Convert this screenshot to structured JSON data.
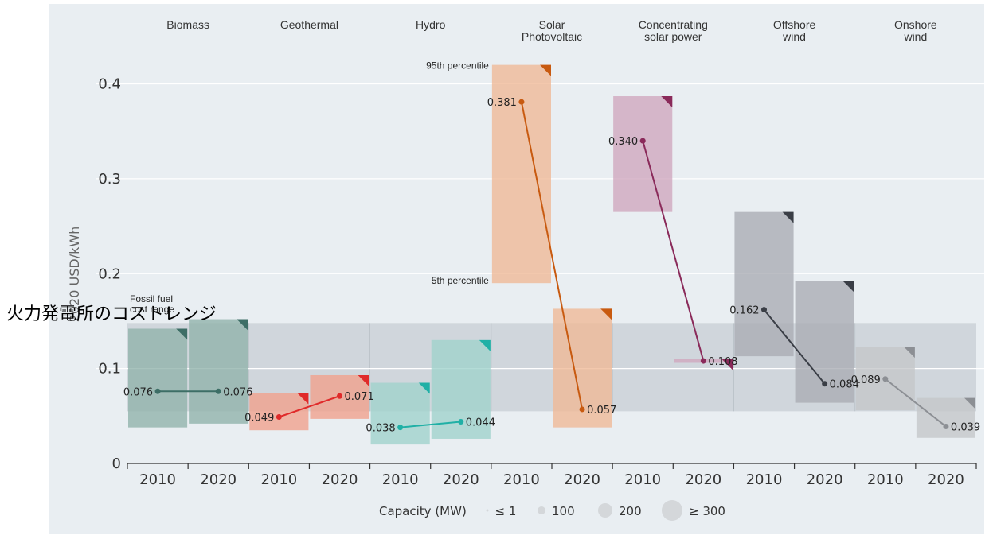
{
  "overlay_caption": "火力発電所のコストレンジ",
  "chart_data": {
    "type": "range-bar",
    "ylabel": "2020 USD/kWh",
    "ylim": [
      0,
      0.43
    ],
    "yticks": [
      0,
      0.1,
      0.2,
      0.3,
      0.4
    ],
    "ytick_labels": [
      "0",
      "0.1",
      "0.2",
      "0.3",
      "0.4"
    ],
    "xtick_labels": [
      "2010",
      "2020"
    ],
    "fossil_fuel_range": {
      "label": "Fossil fuel\ncost range",
      "low": 0.055,
      "high": 0.148
    },
    "percentile_labels": {
      "high": "95th percentile",
      "low": "5th percentile"
    },
    "technologies": [
      {
        "name": "Biomass",
        "color": "#3d6e66",
        "box_color": "#8fb2aa",
        "y2010": 0.076,
        "y2020": 0.076,
        "label2010": "0.076",
        "label2020": "0.076",
        "range2010": [
          0.038,
          0.142
        ],
        "range2020": [
          0.042,
          0.152
        ]
      },
      {
        "name": "Geothermal",
        "color": "#e02a2a",
        "box_color": "#f1a08c",
        "y2010": 0.049,
        "y2020": 0.071,
        "label2010": "0.049",
        "label2020": "0.071",
        "range2010": [
          0.035,
          0.074
        ],
        "range2020": [
          0.047,
          0.093
        ]
      },
      {
        "name": "Hydro",
        "color": "#20b0a6",
        "box_color": "#9fd2cc",
        "y2010": 0.038,
        "y2020": 0.044,
        "label2010": "0.038",
        "label2020": "0.044",
        "range2010": [
          0.02,
          0.085
        ],
        "range2020": [
          0.026,
          0.13
        ]
      },
      {
        "name": "Solar\nPhotovoltaic",
        "color": "#c85a10",
        "box_color": "#f0b896",
        "y2010": 0.381,
        "y2020": 0.057,
        "label2010": "0.381",
        "label2020": "0.057",
        "range2010": [
          0.19,
          0.42
        ],
        "range2020": [
          0.038,
          0.163
        ]
      },
      {
        "name": "Concentrating\nsolar power",
        "color": "#8a2a5a",
        "box_color": "#d0a6be",
        "y2010": 0.34,
        "y2020": 0.108,
        "label2010": "0.340",
        "label2020": "0.108",
        "range2010": [
          0.265,
          0.387
        ],
        "range2020": [
          0.106,
          0.11
        ]
      },
      {
        "name": "Offshore\nwind",
        "color": "#3a3e46",
        "box_color": "#a9acb3",
        "y2010": 0.162,
        "y2020": 0.084,
        "label2010": "0.162",
        "label2020": "0.084",
        "range2010": [
          0.113,
          0.265
        ],
        "range2020": [
          0.064,
          0.192
        ]
      },
      {
        "name": "Onshore\nwind",
        "color": "#8c8f94",
        "box_color": "#c4c6c9",
        "y2010": 0.089,
        "y2020": 0.039,
        "label2010": "0.089",
        "label2020": "0.039",
        "range2010": [
          0.056,
          0.123
        ],
        "range2020": [
          0.027,
          0.069
        ]
      }
    ],
    "legend": {
      "title": "Capacity (MW)",
      "items": [
        "≤ 1",
        "100",
        "200",
        "≥ 300"
      ]
    }
  }
}
